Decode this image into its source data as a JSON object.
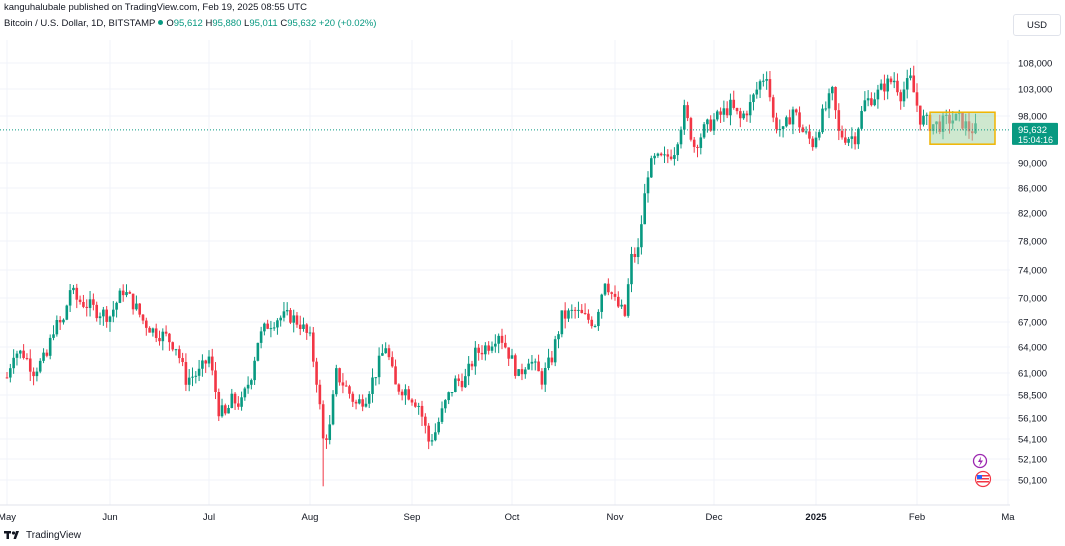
{
  "header": {
    "published": "kanguhalubale published on TradingView.com, Feb 19, 2025 08:55 UTC",
    "symbol": "Bitcoin / U.S. Dollar, 1D, BITSTAMP",
    "ohlc": {
      "o_label": "O",
      "o_value": "95,612",
      "h_label": "H",
      "h_value": "95,880",
      "l_label": "L",
      "l_value": "95,011",
      "c_label": "C",
      "c_value": "95,632",
      "change": "+20 (+0.02%)"
    },
    "currency": "USD"
  },
  "price_tag": {
    "price": "95,632",
    "countdown": "15:04:16"
  },
  "footer": {
    "brand": "TradingView"
  },
  "colors": {
    "up": "#089981",
    "down": "#f23645",
    "box_fill": "#a5d6a7",
    "box_border": "#f0b400",
    "grid": "#f0f3fa"
  },
  "chart_data": {
    "type": "candlestick",
    "title": "Bitcoin / U.S. Dollar, 1D, BITSTAMP",
    "y_ticks": [
      50100,
      52100,
      54100,
      56100,
      58500,
      61000,
      64000,
      67000,
      70000,
      74000,
      78000,
      82000,
      86000,
      90000,
      95632,
      98000,
      103000,
      108000
    ],
    "y_tick_labels": [
      "50,100",
      "52,100",
      "54,100",
      "56,100",
      "58,500",
      "61,000",
      "64,000",
      "67,000",
      "70,000",
      "74,000",
      "78,000",
      "82,000",
      "86,000",
      "90,000",
      "95,632",
      "98,000",
      "103,000",
      "108,000"
    ],
    "x_ticks": [
      {
        "label": "May",
        "date": "2024-05-01"
      },
      {
        "label": "Jun",
        "date": "2024-06-01"
      },
      {
        "label": "Jul",
        "date": "2024-07-01"
      },
      {
        "label": "Aug",
        "date": "2024-08-01"
      },
      {
        "label": "Sep",
        "date": "2024-09-01"
      },
      {
        "label": "Oct",
        "date": "2024-10-01"
      },
      {
        "label": "Nov",
        "date": "2024-11-01"
      },
      {
        "label": "Dec",
        "date": "2024-12-01"
      },
      {
        "label": "2025",
        "date": "2025-01-01"
      },
      {
        "label": "Feb",
        "date": "2025-02-01"
      },
      {
        "label": "Ma",
        "date": "2025-03-01"
      }
    ],
    "scale": "log",
    "last_price": 95632,
    "range_box": {
      "start": "2025-02-05",
      "end": "2025-02-25",
      "low": 93200,
      "high": 98700
    },
    "closes_by_date": [
      [
        "2024-05-01",
        60500
      ],
      [
        "2024-05-03",
        63500
      ],
      [
        "2024-05-06",
        63200
      ],
      [
        "2024-05-09",
        61300
      ],
      [
        "2024-05-13",
        62900
      ],
      [
        "2024-05-15",
        66300
      ],
      [
        "2024-05-18",
        67000
      ],
      [
        "2024-05-20",
        71300
      ],
      [
        "2024-05-22",
        69800
      ],
      [
        "2024-05-25",
        69200
      ],
      [
        "2024-05-28",
        68400
      ],
      [
        "2024-06-01",
        67800
      ],
      [
        "2024-06-05",
        71100
      ],
      [
        "2024-06-08",
        69400
      ],
      [
        "2024-06-11",
        67200
      ],
      [
        "2024-06-14",
        66000
      ],
      [
        "2024-06-18",
        65200
      ],
      [
        "2024-06-21",
        64100
      ],
      [
        "2024-06-24",
        60300
      ],
      [
        "2024-06-28",
        61000
      ],
      [
        "2024-07-01",
        62800
      ],
      [
        "2024-07-04",
        57000
      ],
      [
        "2024-07-06",
        56300
      ],
      [
        "2024-07-08",
        57900
      ],
      [
        "2024-07-11",
        57600
      ],
      [
        "2024-07-14",
        60900
      ],
      [
        "2024-07-16",
        64800
      ],
      [
        "2024-07-19",
        66700
      ],
      [
        "2024-07-22",
        67500
      ],
      [
        "2024-07-26",
        67700
      ],
      [
        "2024-07-29",
        66800
      ],
      [
        "2024-08-01",
        64900
      ],
      [
        "2024-08-03",
        60300
      ],
      [
        "2024-08-05",
        54000
      ],
      [
        "2024-08-07",
        55100
      ],
      [
        "2024-08-09",
        60900
      ],
      [
        "2024-08-12",
        59300
      ],
      [
        "2024-08-15",
        57500
      ],
      [
        "2024-08-18",
        58400
      ],
      [
        "2024-08-21",
        61100
      ],
      [
        "2024-08-24",
        64200
      ],
      [
        "2024-08-27",
        59400
      ],
      [
        "2024-08-30",
        59100
      ],
      [
        "2024-09-03",
        57500
      ],
      [
        "2024-09-06",
        53900
      ],
      [
        "2024-09-08",
        54800
      ],
      [
        "2024-09-11",
        57600
      ],
      [
        "2024-09-14",
        60000
      ],
      [
        "2024-09-17",
        60300
      ],
      [
        "2024-09-20",
        63200
      ],
      [
        "2024-09-24",
        64300
      ],
      [
        "2024-09-27",
        65800
      ],
      [
        "2024-09-30",
        63300
      ],
      [
        "2024-10-03",
        60600
      ],
      [
        "2024-10-06",
        62800
      ],
      [
        "2024-10-10",
        60300
      ],
      [
        "2024-10-13",
        62800
      ],
      [
        "2024-10-16",
        67600
      ],
      [
        "2024-10-20",
        68300
      ],
      [
        "2024-10-23",
        67500
      ],
      [
        "2024-10-26",
        67000
      ],
      [
        "2024-10-29",
        72700
      ],
      [
        "2024-11-01",
        69500
      ],
      [
        "2024-11-04",
        67800
      ],
      [
        "2024-11-06",
        75600
      ],
      [
        "2024-11-08",
        76600
      ],
      [
        "2024-11-11",
        88700
      ],
      [
        "2024-11-13",
        90500
      ],
      [
        "2024-11-16",
        90600
      ],
      [
        "2024-11-19",
        92300
      ],
      [
        "2024-11-22",
        98900
      ],
      [
        "2024-11-25",
        93000
      ],
      [
        "2024-11-28",
        95600
      ],
      [
        "2024-12-01",
        97200
      ],
      [
        "2024-12-04",
        98700
      ],
      [
        "2024-12-06",
        99800
      ],
      [
        "2024-12-09",
        97400
      ],
      [
        "2024-12-12",
        100000
      ],
      [
        "2024-12-15",
        104300
      ],
      [
        "2024-12-17",
        106100
      ],
      [
        "2024-12-19",
        97400
      ],
      [
        "2024-12-22",
        95100
      ],
      [
        "2024-12-25",
        99300
      ],
      [
        "2024-12-28",
        95300
      ],
      [
        "2024-12-31",
        93400
      ],
      [
        "2025-01-03",
        98100
      ],
      [
        "2025-01-06",
        102200
      ],
      [
        "2025-01-08",
        95000
      ],
      [
        "2025-01-10",
        94500
      ],
      [
        "2025-01-13",
        94500
      ],
      [
        "2025-01-16",
        100500
      ],
      [
        "2025-01-20",
        102200
      ],
      [
        "2025-01-22",
        103700
      ],
      [
        "2025-01-25",
        104800
      ],
      [
        "2025-01-27",
        102100
      ],
      [
        "2025-01-30",
        104700
      ],
      [
        "2025-02-02",
        97700
      ],
      [
        "2025-02-05",
        96600
      ],
      [
        "2025-02-08",
        96500
      ],
      [
        "2025-02-11",
        97400
      ],
      [
        "2025-02-14",
        97500
      ],
      [
        "2025-02-17",
        95800
      ],
      [
        "2025-02-19",
        95632
      ]
    ]
  }
}
